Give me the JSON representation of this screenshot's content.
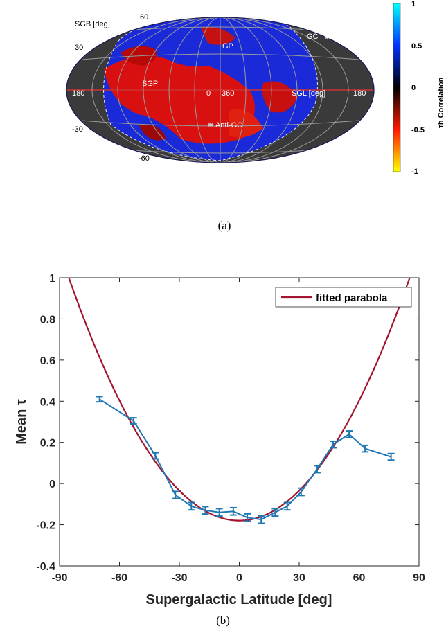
{
  "panel_a": {
    "caption": "(a)",
    "labels": {
      "sgb": "SGB [deg]",
      "lat60": "60",
      "lat30": "30",
      "latm30": "-30",
      "latm60": "-60",
      "lon180_left": "180",
      "lon0": "0",
      "lon360": "360",
      "lon180_right": "180",
      "sgl": "SGL [deg]",
      "gp": "GP",
      "sgp": "SGP",
      "gc": "GC",
      "antigc": "Anti-GC"
    },
    "colorbar": {
      "ticks": [
        "1",
        "0.5",
        "0",
        "-0.5",
        "-1"
      ],
      "label": "τh Correlation",
      "colors": [
        "#00ffff",
        "#0033ff",
        "#000000",
        "#ff1a00",
        "#ffff00"
      ]
    }
  },
  "panel_b": {
    "caption": "(b)"
  },
  "chart_data": {
    "type": "line",
    "title": "",
    "xlabel": "Supergalactic Latitude  [deg]",
    "ylabel": "Mean τ",
    "xlim": [
      -90,
      90
    ],
    "ylim": [
      -0.4,
      1
    ],
    "xticks": [
      -90,
      -60,
      -30,
      0,
      30,
      60,
      90
    ],
    "yticks": [
      -0.4,
      -0.2,
      0,
      0.2,
      0.4,
      0.6,
      0.8,
      1
    ],
    "legend": {
      "entries": [
        "fitted parabola"
      ],
      "position": "top-right"
    },
    "series": [
      {
        "color": "#1f77b4",
        "x": [
          -70,
          -53,
          -42,
          -32,
          -24,
          -17,
          -10,
          -3,
          4,
          11,
          18,
          24,
          31,
          39,
          47,
          55,
          63,
          76
        ],
        "y": [
          0.41,
          0.305,
          0.135,
          -0.055,
          -0.11,
          -0.13,
          -0.14,
          -0.135,
          -0.165,
          -0.175,
          -0.14,
          -0.11,
          -0.04,
          0.07,
          0.19,
          0.24,
          0.17,
          0.13
        ],
        "err": [
          0.013,
          0.015,
          0.015,
          0.017,
          0.018,
          0.018,
          0.018,
          0.018,
          0.018,
          0.018,
          0.018,
          0.018,
          0.018,
          0.017,
          0.016,
          0.016,
          0.016,
          0.016
        ]
      },
      {
        "name": "fitted parabola",
        "color": "#a2142f",
        "fit": {
          "vertex_x": 0,
          "vertex_y": -0.18,
          "coef": 0.000162
        }
      }
    ]
  }
}
